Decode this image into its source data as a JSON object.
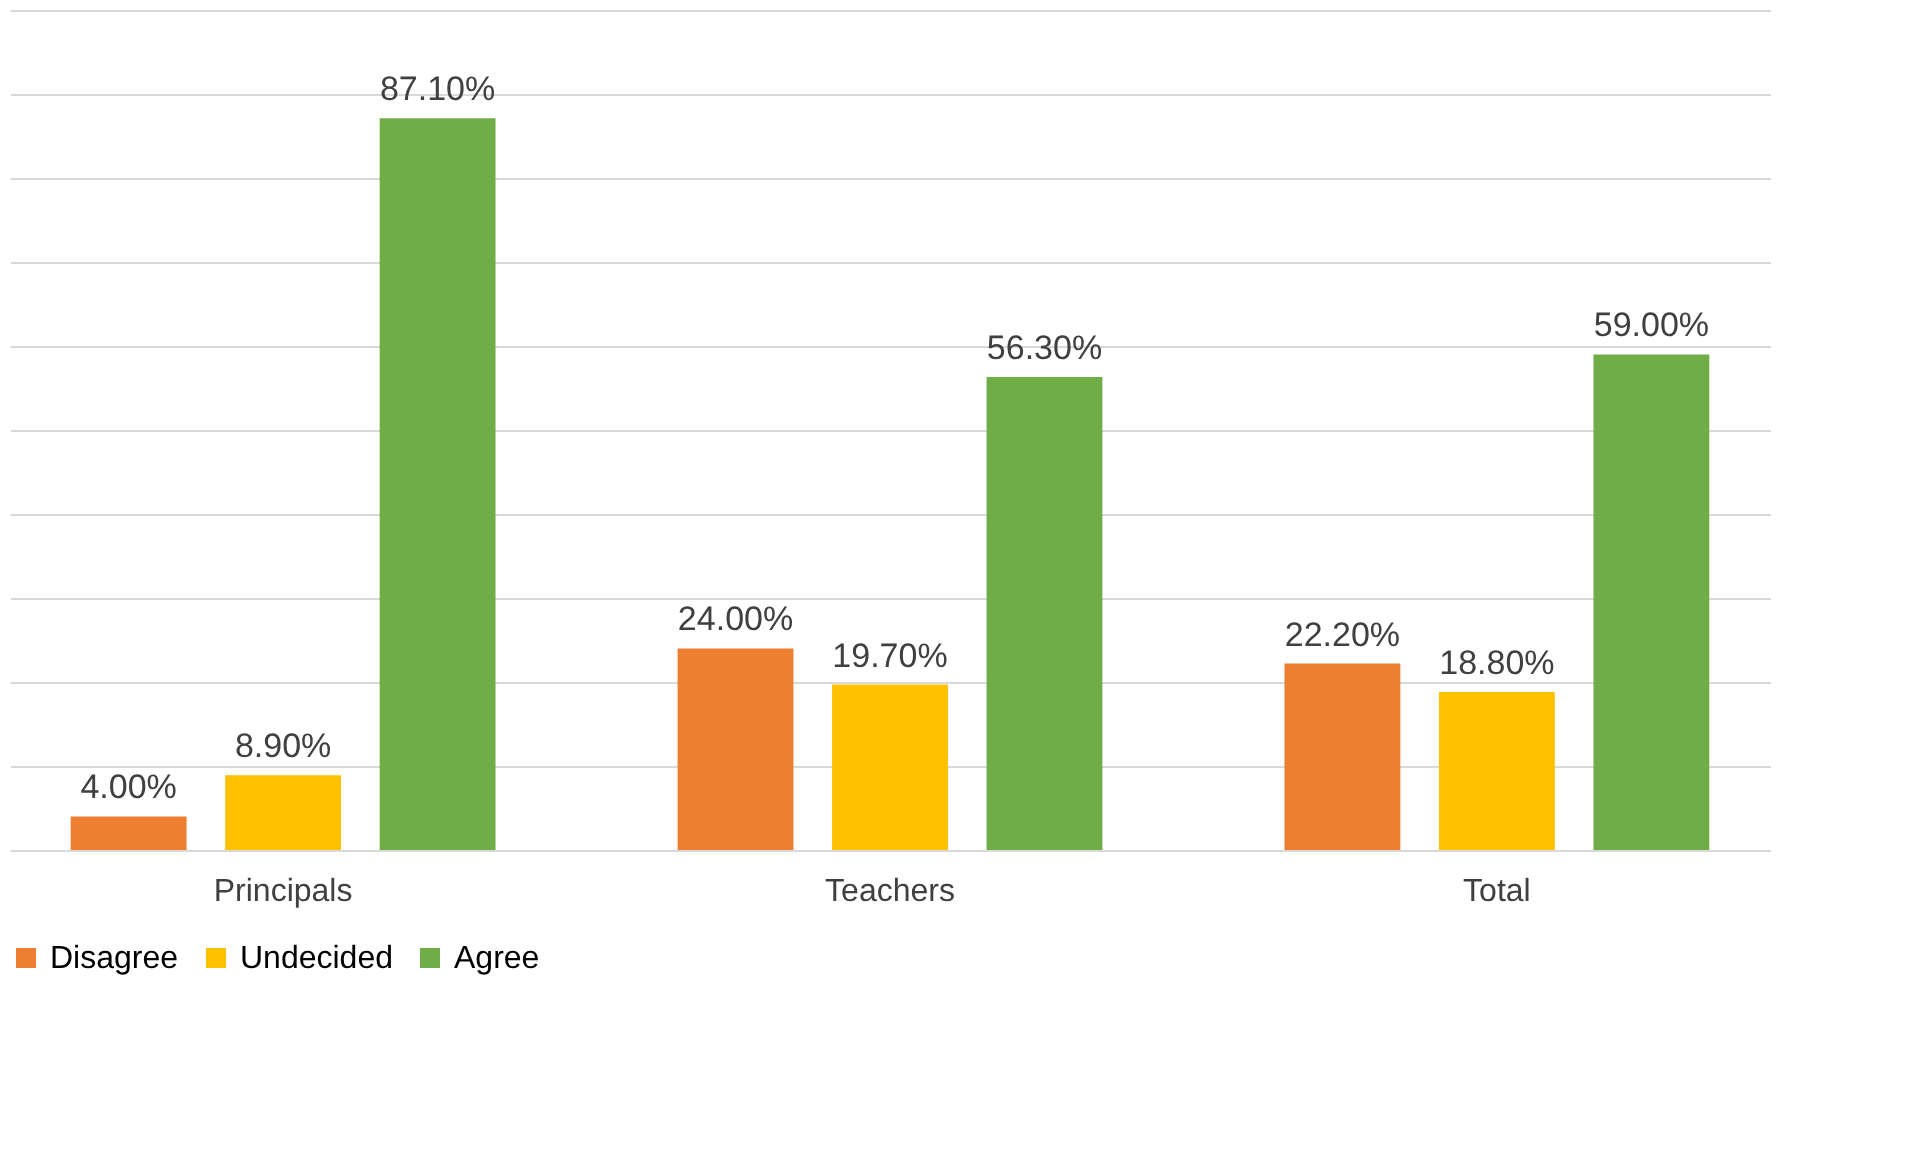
{
  "chart_data": {
    "type": "bar",
    "categories": [
      "Principals",
      "Teachers",
      "Total"
    ],
    "series": [
      {
        "name": "Disagree",
        "color": "#ed7d31",
        "values": [
          4.0,
          24.0,
          22.2
        ],
        "value_labels": [
          "4.00%",
          "24.00%",
          "22.20%"
        ]
      },
      {
        "name": "Undecided",
        "color": "#ffc000",
        "values": [
          8.9,
          19.7,
          18.8
        ],
        "value_labels": [
          "8.90%",
          "19.70%",
          "18.80%"
        ]
      },
      {
        "name": "Agree",
        "color": "#70ad47",
        "values": [
          87.1,
          56.3,
          59.0
        ],
        "value_labels": [
          "87.10%",
          "56.30%",
          "59.00%"
        ]
      }
    ],
    "ylim": [
      0,
      100
    ],
    "yticks": [
      {
        "value": 0,
        "label": null
      },
      {
        "value": 10,
        "label": null
      },
      {
        "value": 20,
        "label": null
      },
      {
        "value": 30,
        "label": null
      },
      {
        "value": 40,
        "label": null
      },
      {
        "value": 50,
        "label": null
      },
      {
        "value": 60,
        "label": null
      },
      {
        "value": 70,
        "label": null
      },
      {
        "value": 80,
        "label": null
      },
      {
        "value": 90,
        "label": null
      },
      {
        "value": 100,
        "label": null
      }
    ],
    "grid": "y",
    "legend": "bottom",
    "tick_labels": "x"
  }
}
